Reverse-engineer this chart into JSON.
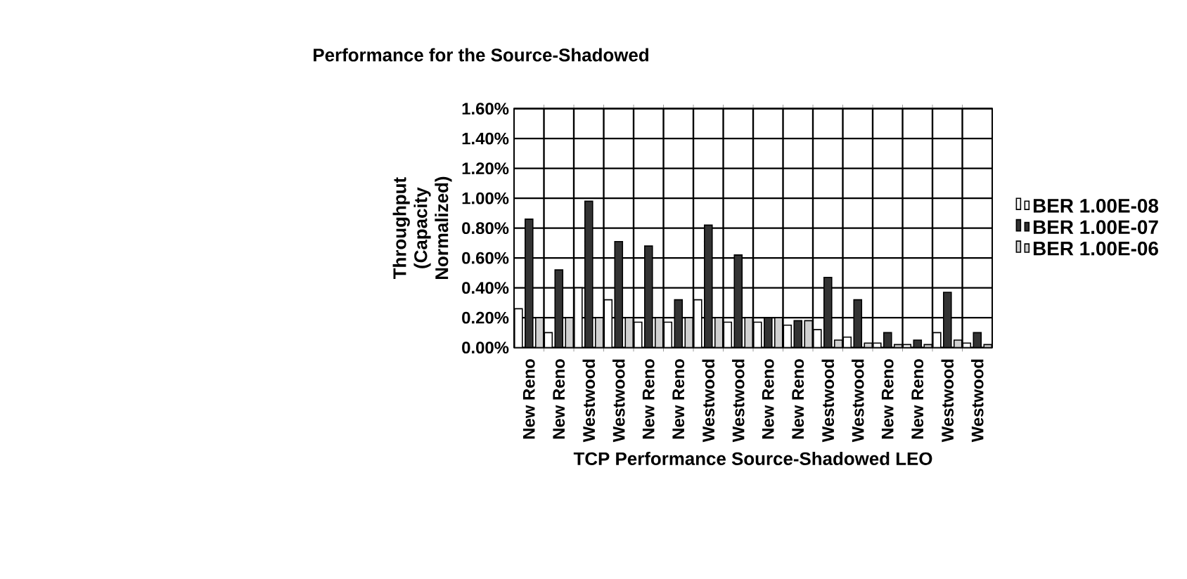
{
  "chart_data": {
    "type": "bar",
    "title": "Performance for the Source-Shadowed",
    "xlabel": "TCP Performance Source-Shadowed LEO",
    "ylabel": "Throughput (Capacity Normalized)",
    "categories": [
      "New Reno",
      "New Reno",
      "Westwood",
      "Westwood",
      "New Reno",
      "New Reno",
      "Westwood",
      "Westwood",
      "New Reno",
      "New Reno",
      "Westwood",
      "Westwood",
      "New Reno",
      "New Reno",
      "Westwood",
      "Westwood"
    ],
    "series": [
      {
        "name": "BER 1.00E-08",
        "color": "#ffffff",
        "values": [
          0.26,
          0.1,
          0.4,
          0.32,
          0.17,
          0.17,
          0.32,
          0.17,
          0.17,
          0.15,
          0.12,
          0.07,
          0.03,
          0.02,
          0.1,
          0.03
        ]
      },
      {
        "name": "BER 1.00E-07",
        "color": "#333333",
        "values": [
          0.86,
          0.52,
          0.98,
          0.71,
          0.68,
          0.32,
          0.82,
          0.62,
          0.2,
          0.18,
          0.47,
          0.32,
          0.1,
          0.05,
          0.37,
          0.1
        ]
      },
      {
        "name": "BER 1.00E-06",
        "color": "#d0d0d0",
        "values": [
          0.2,
          0.2,
          0.2,
          0.2,
          0.2,
          0.2,
          0.2,
          0.2,
          0.2,
          0.18,
          0.05,
          0.03,
          0.02,
          0.02,
          0.05,
          0.02
        ]
      }
    ],
    "ylim": [
      0,
      1.6
    ],
    "yticks": [
      {
        "value": 0,
        "label": "0.00%"
      },
      {
        "value": 0.2,
        "label": "0.20%"
      },
      {
        "value": 0.4,
        "label": "0.40%"
      },
      {
        "value": 0.6,
        "label": "0.60%"
      },
      {
        "value": 0.8,
        "label": "0.80%"
      },
      {
        "value": 1.0,
        "label": "1.00%"
      },
      {
        "value": 1.2,
        "label": "1.20%"
      },
      {
        "value": 1.4,
        "label": "1.40%"
      },
      {
        "value": 1.6,
        "label": "1.60%"
      }
    ],
    "grid": true,
    "legend": "right"
  }
}
